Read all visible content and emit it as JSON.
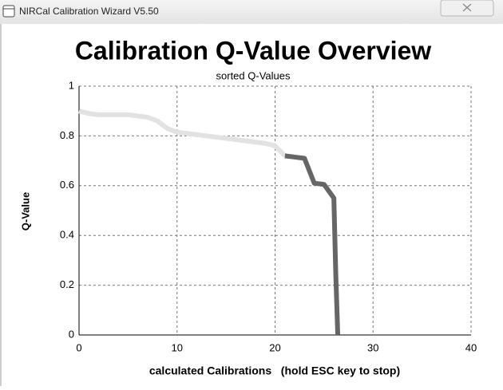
{
  "window_title": "NIRCal Calibration Wizard V5.50",
  "chart_data": {
    "type": "line",
    "title": "Calibration Q-Value Overview",
    "subtitle": "sorted Q-Values",
    "x_label": "calculated Calibrations   (hold ESC key to stop)",
    "y_label": "Q-Value",
    "series": [
      {
        "color": "#e2e2e2",
        "x": [
          0,
          1,
          2,
          3,
          4,
          5,
          6,
          7,
          8,
          9,
          10,
          11,
          12,
          13,
          14,
          15,
          16,
          17,
          18,
          19,
          20,
          21
        ],
        "values": [
          0.9,
          0.89,
          0.885,
          0.885,
          0.885,
          0.885,
          0.88,
          0.875,
          0.86,
          0.83,
          0.815,
          0.81,
          0.805,
          0.8,
          0.795,
          0.79,
          0.785,
          0.78,
          0.775,
          0.77,
          0.76,
          0.72
        ]
      },
      {
        "color": "#666666",
        "x": [
          21,
          22,
          23,
          24,
          25,
          26,
          26.2,
          26.4
        ],
        "values": [
          0.72,
          0.715,
          0.71,
          0.61,
          0.605,
          0.55,
          0.24,
          0
        ]
      }
    ],
    "xlim": [
      0,
      40
    ],
    "xticks": [
      0,
      10,
      20,
      30,
      40
    ],
    "ylim": [
      0,
      1
    ],
    "yticks": [
      0,
      0.2,
      0.4,
      0.6,
      0.8,
      1
    ],
    "grid": true
  }
}
